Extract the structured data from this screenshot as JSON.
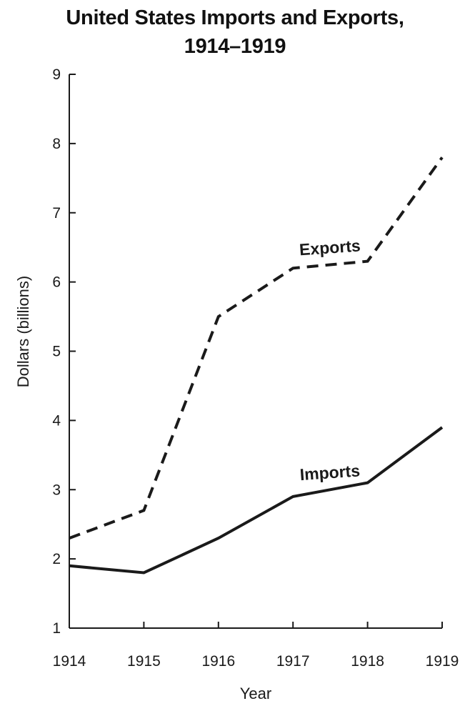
{
  "chart_data": {
    "type": "line",
    "title_lines": [
      "United States Imports and Exports,",
      "1914–1919"
    ],
    "xlabel": "Year",
    "ylabel": "Dollars (billions)",
    "categories": [
      "1914",
      "1915",
      "1916",
      "1917",
      "1918",
      "1919"
    ],
    "yticks": [
      1,
      2,
      3,
      4,
      5,
      6,
      7,
      8,
      9
    ],
    "ylim": [
      1,
      9
    ],
    "grid": false,
    "legend": "none",
    "series": [
      {
        "name": "Exports",
        "values": [
          2.3,
          2.7,
          5.5,
          6.2,
          6.3,
          7.8
        ],
        "style": "dashed",
        "color": "#1a1a1a"
      },
      {
        "name": "Imports",
        "values": [
          1.9,
          1.8,
          2.3,
          2.9,
          3.1,
          3.9
        ],
        "style": "solid",
        "color": "#1a1a1a"
      }
    ]
  }
}
